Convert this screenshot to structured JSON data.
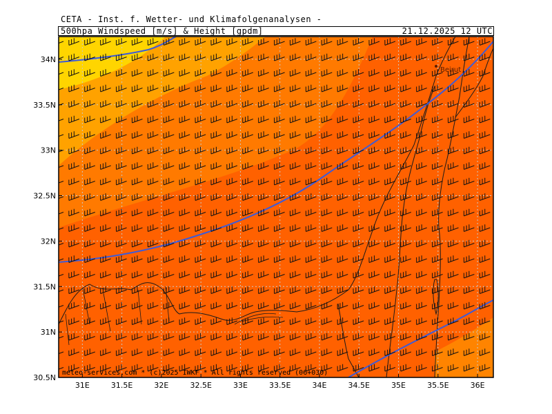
{
  "header": {
    "provider": "CETA - Inst. f. Wetter- und Klimafolgenanalysen -",
    "product": "500hpa Windspeed [m/s] & Height [gpdm]",
    "valid_time": "21.12.2025 12 UTC"
  },
  "map": {
    "lon_range": [
      30.7,
      36.2
    ],
    "lat_range": [
      30.5,
      34.25
    ],
    "lon_ticks": [
      "31E",
      "31.5E",
      "32E",
      "32.5E",
      "33E",
      "33.5E",
      "34E",
      "34.5E",
      "35E",
      "35.5E",
      "36E"
    ],
    "lat_ticks": [
      "30.5N",
      "31N",
      "31.5N",
      "32N",
      "32.5N",
      "33N",
      "33.5N",
      "34N"
    ],
    "colors": {
      "yellow": "#ffd500",
      "light_orange": "#ffa200",
      "orange": "#ff7a00",
      "dark_orange": "#ff6100",
      "contour": "#3b5bdb",
      "grid": "#c8c8c8"
    },
    "wind_barb_style": "barbs from west-southwest",
    "city_label": "Beirut",
    "credit": "meteo-services.com  *  (c)2025 IWKF * All rights reserved (06+030)"
  }
}
